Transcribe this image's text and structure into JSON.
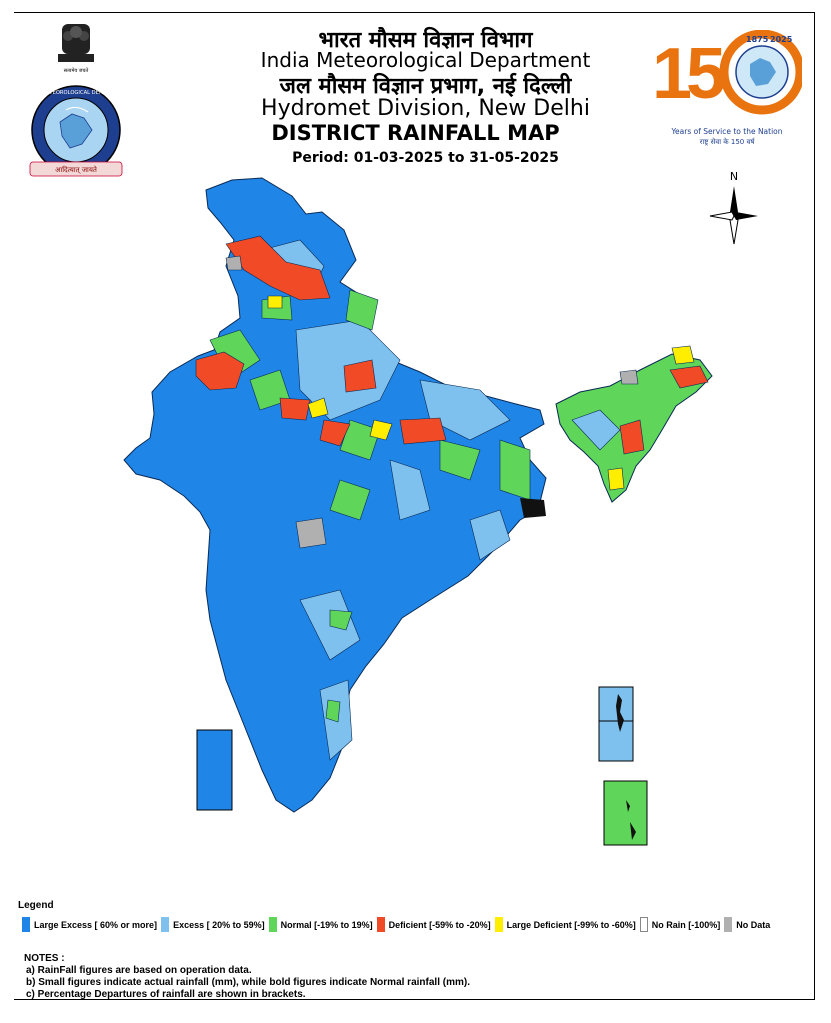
{
  "header": {
    "hindi_org": "भारत मौसम विज्ञान विभाग",
    "org_name": "India Meteorological Department",
    "hindi_division": "जल मौसम विज्ञान प्रभाग, नई दिल्ली",
    "division": "Hydromet Division, New Delhi",
    "title": "DISTRICT RAINFALL MAP",
    "period": "Period: 01-03-2025 to 31-05-2025"
  },
  "logo_left": {
    "emblem_caption": "सत्यमेव जयते",
    "ring_text": "INDIA METEOROLOGICAL DEPARTMENT",
    "ribbon_text": "आदित्यात् जायते"
  },
  "logo_right": {
    "big_number": "150",
    "years_label": "Years of Service to the Nation",
    "hindi_label": "राष्ट्र सेवा के 150 वर्ष",
    "year_start": "1875",
    "year_end": "2025"
  },
  "north_label": "N",
  "legend": {
    "title": "Legend",
    "items": [
      {
        "label": "Large Excess [ 60% or more]",
        "color": "#1f86e8"
      },
      {
        "label": "Excess [ 20% to 59%]",
        "color": "#7ec0ee"
      },
      {
        "label": "Normal [-19% to 19%]",
        "color": "#5fd55a"
      },
      {
        "label": "Deficient [-59% to -20%]",
        "color": "#f04a26"
      },
      {
        "label": "Large Deficient [-99% to -60%]",
        "color": "#ffee00"
      },
      {
        "label": "No Rain  [-100%]",
        "color": "#ffffff"
      },
      {
        "label": "No Data",
        "color": "#b0b0b0"
      }
    ]
  },
  "notes": {
    "title": "NOTES :",
    "items": [
      "a) RainFall figures are based on operation data.",
      "b) Small figures indicate actual rainfall (mm), while bold figures indicate Normal rainfall (mm).",
      "c) Percentage Departures of rainfall are shown in brackets."
    ]
  }
}
